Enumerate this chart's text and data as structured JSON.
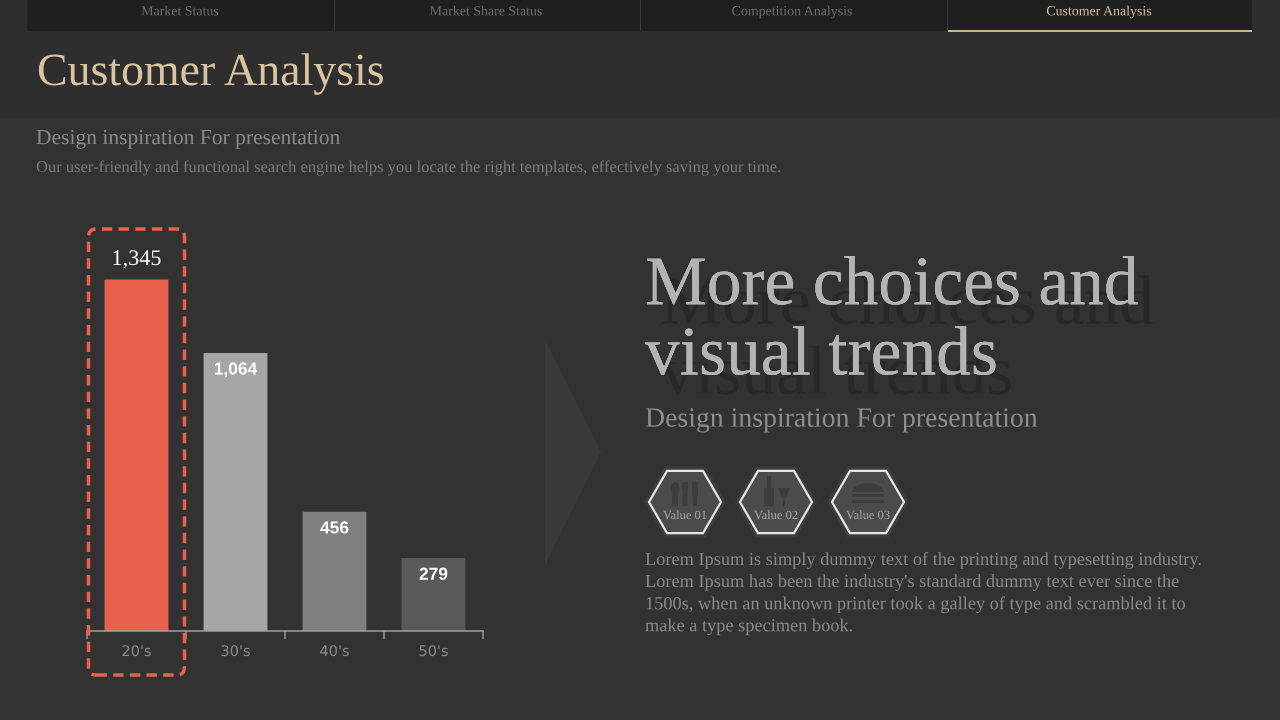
{
  "chart_data": {
    "type": "bar",
    "title": "Customer Analysis",
    "subtitle": "Design inspiration For presentation",
    "categories": [
      "20's",
      "30's",
      "40's",
      "50's"
    ],
    "values": [
      1345,
      1064,
      456,
      279
    ],
    "colors": [
      "#e8604c",
      "#a6a6a6",
      "#7f7f7f",
      "#595959"
    ],
    "value_labels": [
      "1,345",
      "1,064",
      "456",
      "279"
    ],
    "tick_labels": "x",
    "annotations": [
      "Our user-friendly and functional search engine helps you locate the right templates, effectively saving your time.",
      "Market Status",
      "Market Share Status",
      "Competition Analysis",
      "Customer Analysis",
      "More choices and\nvisual trends",
      "Design inspiration For presentation",
      "Value 01",
      "Value 02",
      "Value 03",
      "Lorem Ipsum is simply dummy text of the printing and typesetting industry.\nLorem Ipsum has been the industry's standard dummy text ever since the\n1500s, when an unknown printer took a galley of type and scrambled it to\nmake a type specimen book."
    ]
  }
}
